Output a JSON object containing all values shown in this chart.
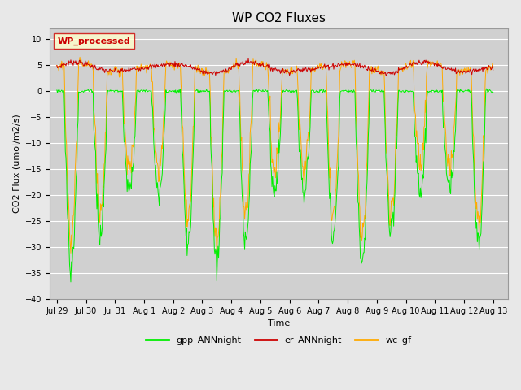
{
  "title": "WP CO2 Fluxes",
  "xlabel": "Time",
  "ylabel": "CO2 Flux (umol/m2/s)",
  "ylim": [
    -40,
    12
  ],
  "yticks": [
    -40,
    -35,
    -30,
    -25,
    -20,
    -15,
    -10,
    -5,
    0,
    5,
    10
  ],
  "fig_bg": "#e8e8e8",
  "plot_bg": "#d0d0d0",
  "legend_label": "WP_processed",
  "legend_bg": "#ffffcc",
  "legend_edge": "#cc0000",
  "legend_text": "#cc0000",
  "gpp_color": "#00ee00",
  "er_color": "#cc0000",
  "wc_color": "#ffaa00",
  "gpp_label": "gpp_ANNnight",
  "er_label": "er_ANNnight",
  "wc_label": "wc_gf",
  "title_fontsize": 11,
  "axis_fontsize": 8,
  "tick_fontsize": 7,
  "legend_fontsize": 8
}
